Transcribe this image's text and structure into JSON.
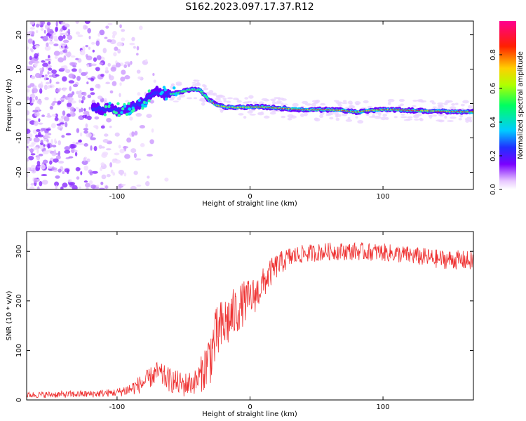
{
  "title": "S162.2023.097.17.37.R12",
  "chart_data": [
    {
      "type": "heatmap",
      "xlabel": "Height of straight line (km)",
      "ylabel": "Frequency (Hz)",
      "xlim": [
        -168,
        168
      ],
      "ylim": [
        -25,
        24
      ],
      "xticks": [
        -100,
        0,
        100
      ],
      "yticks": [
        20,
        10,
        0,
        -10,
        -20
      ],
      "colorbar": {
        "label": "Normalized spectral amplitude",
        "range": [
          0.0,
          1.0
        ],
        "ticks": [
          "0.0",
          "0.2",
          "0.4",
          "0.6",
          "0.8"
        ],
        "tick_values": [
          0.0,
          0.2,
          0.4,
          0.6,
          0.8
        ]
      },
      "ridge": {
        "x": [
          -112,
          -100,
          -90,
          -80,
          -70,
          -63,
          -55,
          -45,
          -38,
          -32,
          -25,
          -18,
          -10,
          0,
          10,
          20,
          40,
          60,
          70,
          80,
          90,
          100,
          110,
          120,
          140,
          160,
          168
        ],
        "y": [
          -1.5,
          -2.0,
          -1.5,
          0.5,
          3.5,
          2.5,
          3.0,
          4.0,
          4.0,
          1.5,
          -0.5,
          -1.0,
          -1.2,
          -1.0,
          -1.0,
          -1.3,
          -1.8,
          -1.8,
          -2.0,
          -2.5,
          -2.0,
          -1.8,
          -1.8,
          -2.0,
          -2.2,
          -2.4,
          -2.4
        ]
      },
      "noise_extent_x": [
        -168,
        -60
      ]
    },
    {
      "type": "line",
      "xlabel": "Height of straight line (km)",
      "ylabel": "SNR (10 * v/v)",
      "xlim": [
        -168,
        168
      ],
      "ylim": [
        0,
        340
      ],
      "xticks": [
        -100,
        0,
        100
      ],
      "yticks": [
        0,
        100,
        200,
        300
      ],
      "color": "#ee3030",
      "trend": {
        "x": [
          -168,
          -120,
          -100,
          -90,
          -80,
          -70,
          -60,
          -50,
          -40,
          -35,
          -30,
          -25,
          -20,
          -15,
          -10,
          -5,
          0,
          5,
          10,
          15,
          20,
          25,
          30,
          40,
          60,
          80,
          100,
          120,
          140,
          160,
          168
        ],
        "y": [
          10,
          12,
          15,
          22,
          35,
          55,
          40,
          30,
          38,
          60,
          90,
          130,
          150,
          165,
          180,
          195,
          205,
          215,
          235,
          255,
          270,
          280,
          288,
          295,
          300,
          300,
          298,
          292,
          285,
          282,
          280
        ]
      },
      "noise_amplitude": {
        "x": [
          -168,
          -100,
          -80,
          -60,
          -40,
          -30,
          -20,
          0,
          20,
          40,
          100,
          168
        ],
        "y": [
          6,
          8,
          20,
          25,
          25,
          60,
          60,
          40,
          25,
          18,
          18,
          20
        ]
      }
    }
  ]
}
